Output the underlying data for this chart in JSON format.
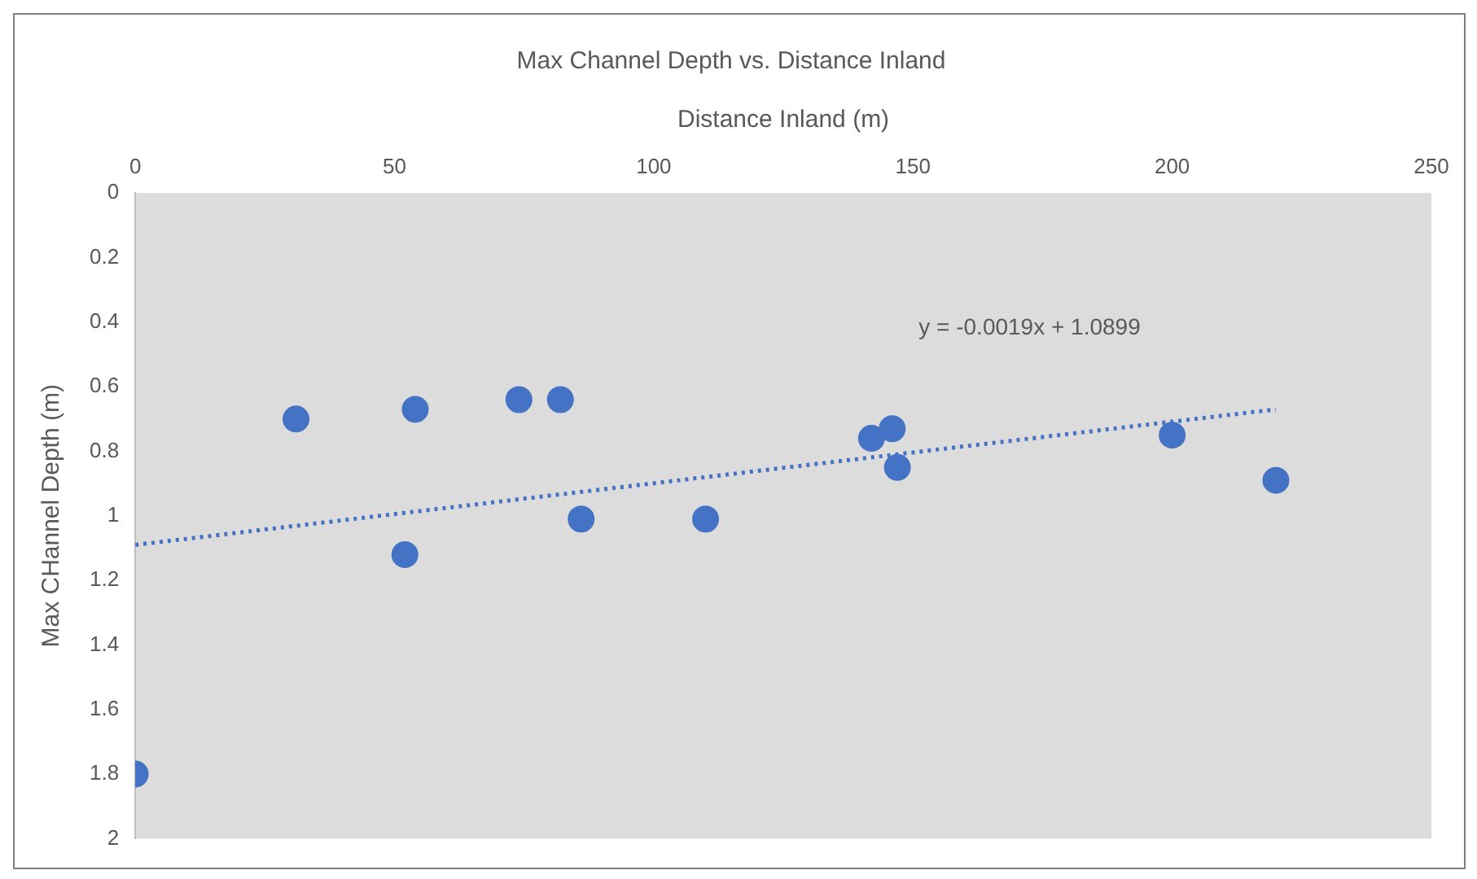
{
  "chart_data": {
    "type": "scatter",
    "title": "Max Channel Depth vs. Distance Inland",
    "xlabel": "Distance Inland (m)",
    "ylabel": "Max CHannel Depth (m)",
    "xlim": [
      0,
      250
    ],
    "xticks": [
      0,
      50,
      100,
      150,
      200,
      250
    ],
    "ylim": [
      2,
      0
    ],
    "yticks": [
      0,
      0.2,
      0.4,
      0.6,
      0.8,
      1,
      1.2,
      1.4,
      1.6,
      1.8,
      2
    ],
    "grid": false,
    "legend": false,
    "marker": "circle",
    "annotations": [
      "y = -0.0019x + 1.0899"
    ],
    "series": [
      {
        "type": "scatter",
        "color": "#4472c4",
        "x": [
          0,
          31,
          52,
          54,
          74,
          82,
          86,
          110,
          142,
          146,
          147,
          200,
          220
        ],
        "values": [
          1.8,
          0.7,
          1.12,
          0.67,
          0.64,
          0.64,
          1.01,
          1.01,
          0.76,
          0.73,
          0.85,
          0.75,
          0.89
        ]
      },
      {
        "type": "line",
        "color": "#4472c4",
        "line_style": "dotted",
        "marker": "none",
        "x": [
          0,
          220
        ],
        "values": [
          1.09,
          0.67
        ]
      }
    ]
  }
}
